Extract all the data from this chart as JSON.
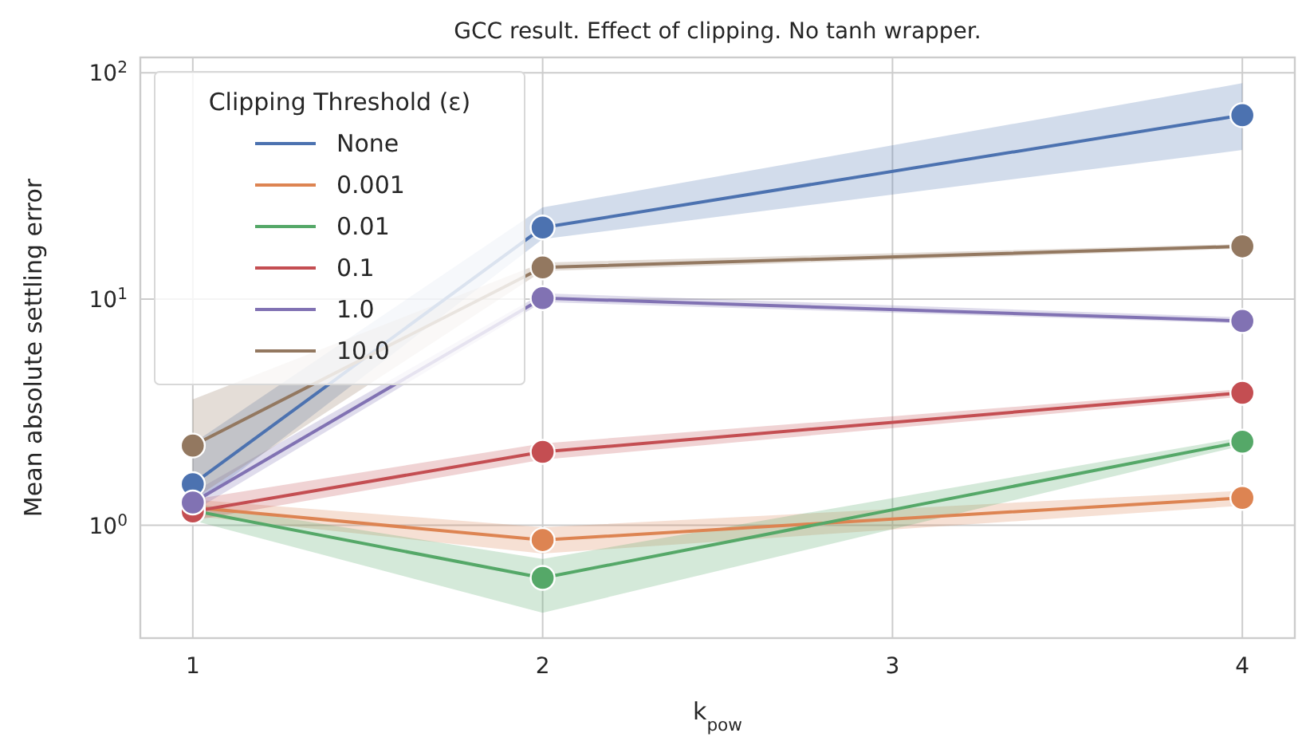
{
  "chart_data": {
    "type": "line",
    "title": "GCC result.  Effect of clipping.  No tanh wrapper.",
    "xlabel": "k$_{pow}$",
    "ylabel": "Mean absolute settling error",
    "legend_title": "Clipping Threshold (ε)",
    "x": [
      1,
      2,
      4
    ],
    "series": [
      {
        "name": "None",
        "color": "#4c72b0",
        "values": [
          1.52,
          20.7,
          65
        ],
        "lower": [
          1.2,
          18.4,
          45.6
        ],
        "upper": [
          2.3,
          25.4,
          90
        ]
      },
      {
        "name": "0.001",
        "color": "#dd8452",
        "values": [
          1.2,
          0.86,
          1.32
        ],
        "lower": [
          1.1,
          0.75,
          1.22
        ],
        "upper": [
          1.3,
          0.98,
          1.42
        ]
      },
      {
        "name": "0.01",
        "color": "#55a868",
        "values": [
          1.16,
          0.585,
          2.34
        ],
        "lower": [
          1.05,
          0.41,
          2.25
        ],
        "upper": [
          1.25,
          0.71,
          2.45
        ]
      },
      {
        "name": "0.1",
        "color": "#c44e52",
        "values": [
          1.15,
          2.11,
          3.85
        ],
        "lower": [
          1.05,
          1.95,
          3.7
        ],
        "upper": [
          1.3,
          2.3,
          4.0
        ]
      },
      {
        "name": "1.0",
        "color": "#8172b3",
        "values": [
          1.26,
          10.1,
          8.0
        ],
        "lower": [
          1.15,
          9.7,
          7.8
        ],
        "upper": [
          1.4,
          10.6,
          8.3
        ]
      },
      {
        "name": "10.0",
        "color": "#937860",
        "values": [
          2.25,
          13.8,
          17.1
        ],
        "lower": [
          1.3,
          13.3,
          16.7
        ],
        "upper": [
          3.6,
          14.5,
          17.5
        ]
      }
    ],
    "xlim": [
      0.85,
      4.15
    ],
    "xticks": [
      1,
      2,
      3,
      4
    ],
    "ylim": [
      0.317,
      117
    ],
    "yticks": [
      {
        "value": 1,
        "label": "10$^{0}$"
      },
      {
        "value": 10,
        "label": "10$^{1}$"
      },
      {
        "value": 100,
        "label": "10$^{2}$"
      }
    ],
    "log": "y",
    "grid": true,
    "legend": "top left",
    "marker": "circle",
    "line_style": "solid"
  }
}
